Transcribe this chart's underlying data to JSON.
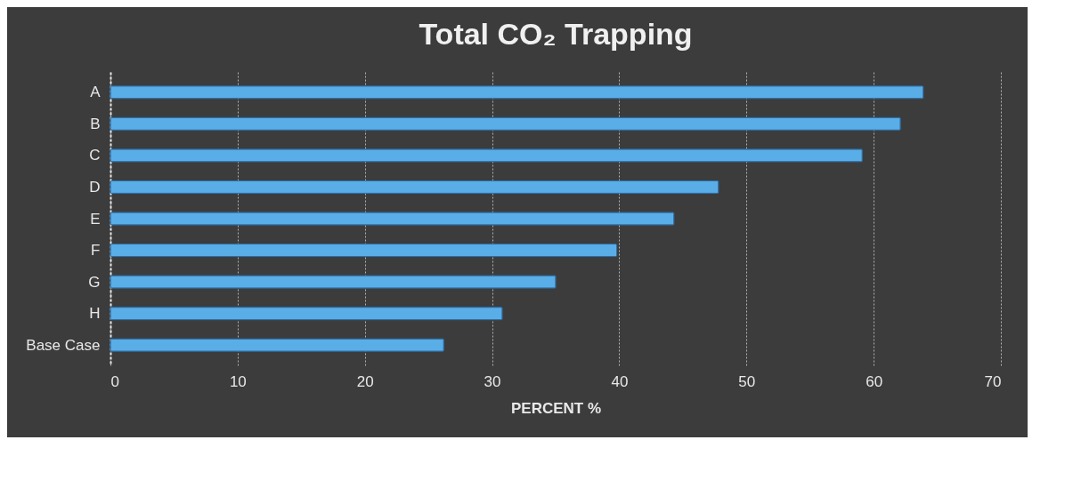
{
  "chart_data": {
    "type": "bar",
    "orientation": "horizontal",
    "title": "Total CO₂ Trapping",
    "xlabel": "PERCENT %",
    "categories": [
      "A",
      "B",
      "C",
      "D",
      "E",
      "F",
      "G",
      "H",
      "Base Case"
    ],
    "values": [
      63.9,
      62.1,
      59.1,
      47.8,
      44.3,
      39.8,
      35.0,
      30.8,
      26.2
    ],
    "color": "#5aaee8",
    "xlim": [
      0,
      70
    ],
    "xticks": [
      0,
      10,
      20,
      30,
      40,
      50,
      60,
      70
    ],
    "grid": "x"
  }
}
